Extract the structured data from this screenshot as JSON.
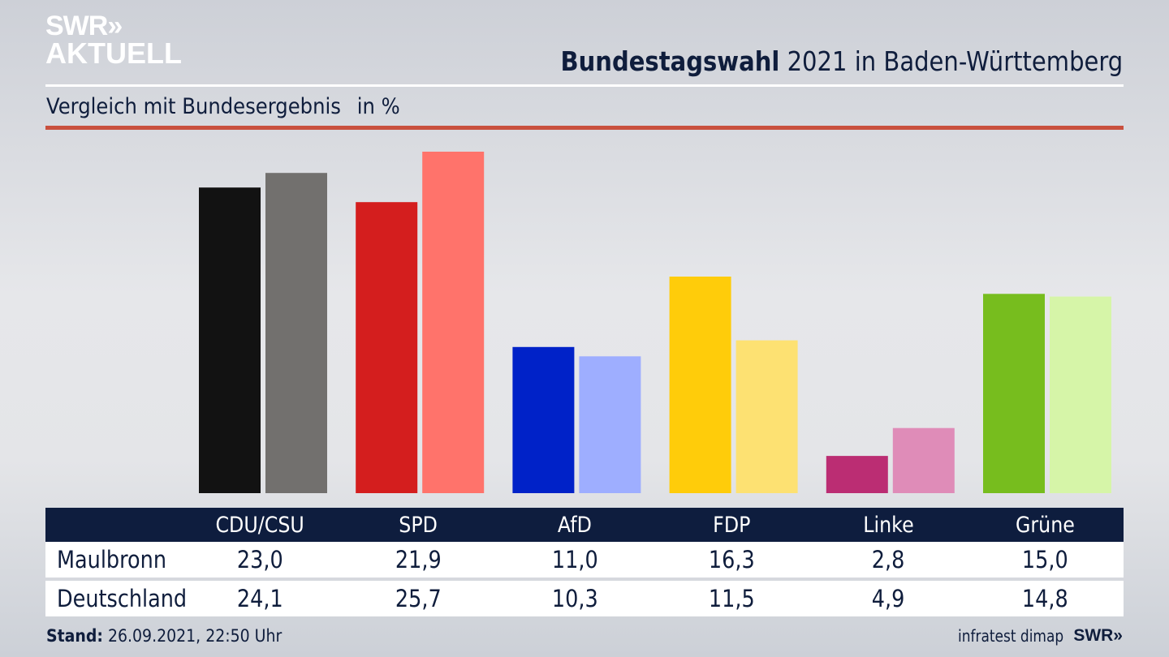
{
  "logo": {
    "line1": "SWR»",
    "line2": "AKTUELL"
  },
  "header": {
    "title_bold": "Bundestagswahl",
    "title_rest": "2021 in Baden-Württemberg"
  },
  "subtitle": {
    "text": "Vergleich mit Bundesergebnis",
    "unit": "in %"
  },
  "table": {
    "columns": [
      "CDU/CSU",
      "SPD",
      "AfD",
      "FDP",
      "Linke",
      "Grüne"
    ],
    "rows": [
      {
        "label": "Maulbronn",
        "values": [
          "23,0",
          "21,9",
          "11,0",
          "16,3",
          "2,8",
          "15,0"
        ]
      },
      {
        "label": "Deutschland",
        "values": [
          "24,1",
          "25,7",
          "10,3",
          "11,5",
          "4,9",
          "14,8"
        ]
      }
    ]
  },
  "footer": {
    "stand_label": "Stand:",
    "stand_value": "26.09.2021, 22:50 Uhr",
    "source": "infratest dimap",
    "brand": "SWR»"
  },
  "chart_data": {
    "type": "bar",
    "title": "Bundestagswahl 2021 in Baden-Württemberg",
    "subtitle": "Vergleich mit Bundesergebnis in %",
    "categories": [
      "CDU/CSU",
      "SPD",
      "AfD",
      "FDP",
      "Linke",
      "Grüne"
    ],
    "series": [
      {
        "name": "Maulbronn",
        "values": [
          23.0,
          21.9,
          11.0,
          16.3,
          2.8,
          15.0
        ],
        "colors": [
          "#121212",
          "#d41e1e",
          "#0022c8",
          "#ffcc0a",
          "#bb2d73",
          "#77bd1e"
        ]
      },
      {
        "name": "Deutschland",
        "values": [
          24.1,
          25.7,
          10.3,
          11.5,
          4.9,
          14.8
        ],
        "colors": [
          "#72706e",
          "#ff736b",
          "#9eaeff",
          "#fde172",
          "#df8cb8",
          "#d6f5a8"
        ]
      }
    ],
    "ylim": [
      0,
      25.7
    ],
    "grid": false,
    "xlabel": "",
    "ylabel": ""
  }
}
